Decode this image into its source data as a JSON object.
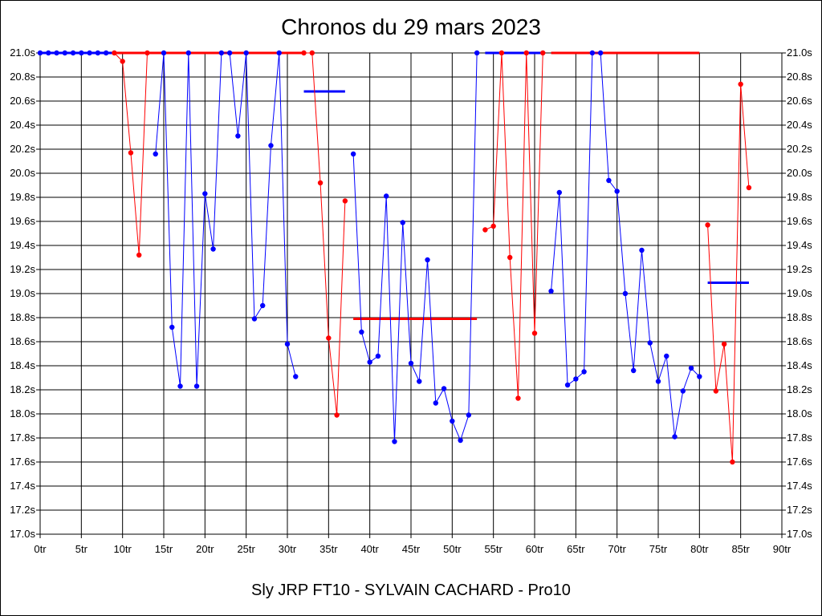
{
  "chart_data": {
    "type": "line",
    "title": "Chronos du 29 mars 2023",
    "caption": "Sly JRP FT10 - SYLVAIN CACHARD - Pro10",
    "xlim": [
      0,
      90
    ],
    "ylim": [
      17.0,
      21.0
    ],
    "x_ticks": [
      "0tr",
      "5tr",
      "10tr",
      "15tr",
      "20tr",
      "25tr",
      "30tr",
      "35tr",
      "40tr",
      "45tr",
      "50tr",
      "55tr",
      "60tr",
      "65tr",
      "70tr",
      "75tr",
      "80tr",
      "85tr",
      "90tr"
    ],
    "y_ticks": [
      "17.0s",
      "17.2s",
      "17.4s",
      "17.6s",
      "17.8s",
      "18.0s",
      "18.2s",
      "18.4s",
      "18.6s",
      "18.8s",
      "19.0s",
      "19.2s",
      "19.4s",
      "19.6s",
      "19.8s",
      "20.0s",
      "20.2s",
      "20.4s",
      "20.6s",
      "20.8s",
      "21.0s"
    ],
    "grid": true,
    "colors": {
      "blue": "#0000ff",
      "red": "#ff0000"
    },
    "segments": [
      {
        "color": "blue",
        "points": [
          [
            0,
            21.0
          ],
          [
            1,
            21.0
          ],
          [
            2,
            21.0
          ],
          [
            3,
            21.0
          ],
          [
            4,
            21.0
          ],
          [
            5,
            21.0
          ],
          [
            6,
            21.0
          ],
          [
            7,
            21.0
          ],
          [
            8,
            21.0
          ]
        ]
      },
      {
        "color": "red",
        "points": [
          [
            9,
            21.0
          ],
          [
            10,
            20.93
          ],
          [
            11,
            20.17
          ],
          [
            12,
            19.32
          ],
          [
            13,
            21.0
          ]
        ]
      },
      {
        "color": "blue",
        "points": [
          [
            14,
            20.16
          ],
          [
            15,
            21.0
          ],
          [
            16,
            18.72
          ],
          [
            17,
            18.23
          ],
          [
            18,
            21.0
          ],
          [
            19,
            18.23
          ],
          [
            20,
            19.83
          ],
          [
            21,
            19.37
          ],
          [
            22,
            21.0
          ],
          [
            23,
            21.0
          ],
          [
            24,
            20.31
          ],
          [
            25,
            21.0
          ],
          [
            26,
            18.79
          ],
          [
            27,
            18.9
          ],
          [
            28,
            20.23
          ],
          [
            29,
            21.0
          ],
          [
            30,
            18.58
          ],
          [
            31,
            18.31
          ]
        ]
      },
      {
        "color": "red",
        "points": [
          [
            32,
            21.0
          ],
          [
            33,
            21.0
          ],
          [
            34,
            19.92
          ],
          [
            35,
            18.63
          ],
          [
            36,
            17.99
          ],
          [
            37,
            19.77
          ]
        ]
      },
      {
        "color": "blue",
        "points": [
          [
            38,
            20.16
          ],
          [
            39,
            18.68
          ],
          [
            40,
            18.43
          ],
          [
            41,
            18.48
          ],
          [
            42,
            19.81
          ],
          [
            43,
            17.77
          ],
          [
            44,
            19.59
          ],
          [
            45,
            18.42
          ],
          [
            46,
            18.27
          ],
          [
            47,
            19.28
          ],
          [
            48,
            18.09
          ],
          [
            49,
            18.21
          ],
          [
            50,
            17.94
          ],
          [
            51,
            17.78
          ],
          [
            52,
            17.99
          ],
          [
            53,
            21.0
          ]
        ]
      },
      {
        "color": "red",
        "points": [
          [
            54,
            19.53
          ],
          [
            55,
            19.56
          ],
          [
            56,
            21.0
          ],
          [
            57,
            19.3
          ],
          [
            58,
            18.13
          ],
          [
            59,
            21.0
          ],
          [
            60,
            18.67
          ],
          [
            61,
            21.0
          ]
        ]
      },
      {
        "color": "blue",
        "points": [
          [
            62,
            19.02
          ],
          [
            63,
            19.84
          ],
          [
            64,
            18.24
          ],
          [
            65,
            18.29
          ],
          [
            66,
            18.35
          ],
          [
            67,
            21.0
          ],
          [
            68,
            21.0
          ],
          [
            69,
            19.94
          ],
          [
            70,
            19.85
          ],
          [
            71,
            19.0
          ],
          [
            72,
            18.36
          ],
          [
            73,
            19.36
          ],
          [
            74,
            18.59
          ],
          [
            75,
            18.27
          ],
          [
            76,
            18.48
          ],
          [
            77,
            17.81
          ],
          [
            78,
            18.19
          ],
          [
            79,
            18.38
          ],
          [
            80,
            18.31
          ]
        ]
      },
      {
        "color": "red",
        "points": [
          [
            81,
            19.57
          ],
          [
            82,
            18.19
          ],
          [
            83,
            18.58
          ],
          [
            84,
            17.6
          ],
          [
            85,
            20.74
          ],
          [
            86,
            19.88
          ]
        ]
      }
    ],
    "averages": [
      {
        "color": "blue",
        "x": [
          0,
          9
        ],
        "y": 21.0
      },
      {
        "color": "red",
        "x": [
          9,
          32
        ],
        "y": 21.0
      },
      {
        "color": "blue",
        "x": [
          32,
          37
        ],
        "y": 20.68
      },
      {
        "color": "red",
        "x": [
          38,
          53
        ],
        "y": 18.79
      },
      {
        "color": "blue",
        "x": [
          54,
          61
        ],
        "y": 21.0
      },
      {
        "color": "red",
        "x": [
          62,
          80
        ],
        "y": 21.0
      },
      {
        "color": "blue",
        "x": [
          81,
          86
        ],
        "y": 19.09
      }
    ]
  }
}
